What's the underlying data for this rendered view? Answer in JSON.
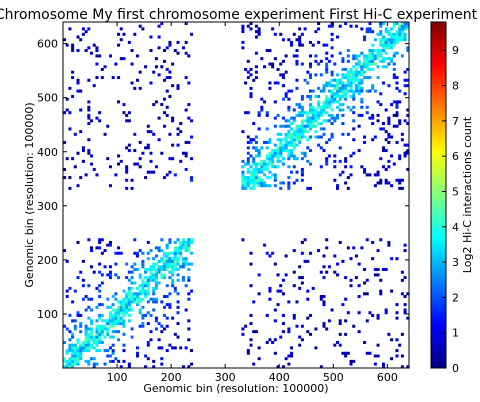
{
  "chart_data": {
    "type": "heatmap",
    "title": "Chromosome My first chromosome experiment First Hi-C experiment",
    "xlabel": "Genomic bin (resolution: 100000)",
    "ylabel": "Genomic bin (resolution: 100000)",
    "xlim": [
      0,
      640
    ],
    "ylim": [
      0,
      640
    ],
    "x_ticks": [
      "100",
      "200",
      "300",
      "400",
      "500",
      "600"
    ],
    "y_ticks": [
      "100",
      "200",
      "300",
      "400",
      "500",
      "600"
    ],
    "unmapped_band_bins": [
      242,
      330
    ],
    "grid": false,
    "colormap": "jet",
    "colorbar": {
      "label": "Log2 Hi-C interactions count",
      "range": [
        0,
        9.8
      ],
      "ticks": [
        "0",
        "1",
        "2",
        "3",
        "4",
        "5",
        "6",
        "7",
        "8",
        "9"
      ],
      "colors": [
        "#00007f",
        "#0000ff",
        "#007fff",
        "#00ffff",
        "#7fff7f",
        "#ffff00",
        "#ff7f00",
        "#ff0000",
        "#7f0000"
      ]
    }
  }
}
